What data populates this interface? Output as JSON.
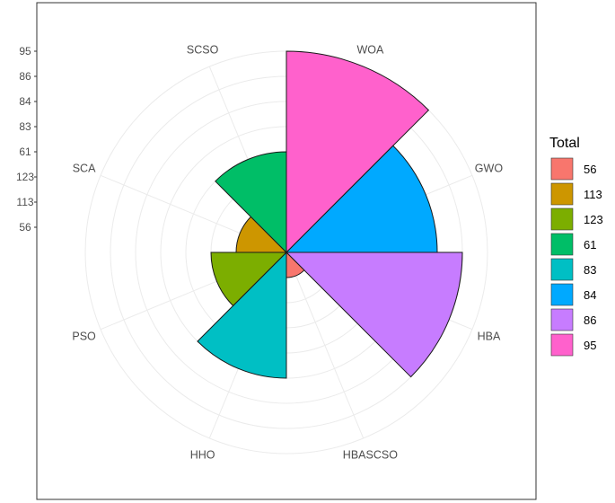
{
  "chart_data": {
    "type": "polar-bar",
    "title": "",
    "categories": [
      "WOA",
      "GWO",
      "HBA",
      "HBASCSO",
      "HHO",
      "PSO",
      "SCA",
      "SCSO"
    ],
    "bars": [
      {
        "category": "WOA",
        "total": "95",
        "radius": 8,
        "color": "#FF61CC"
      },
      {
        "category": "GWO",
        "total": "84",
        "radius": 6,
        "color": "#00A9FF"
      },
      {
        "category": "HBA",
        "total": "86",
        "radius": 7,
        "color": "#C77CFF"
      },
      {
        "category": "HBASCSO",
        "total": "56",
        "radius": 1,
        "color": "#F8766D"
      },
      {
        "category": "HHO",
        "total": "83",
        "radius": 5,
        "color": "#00BFC4"
      },
      {
        "category": "PSO",
        "total": "123",
        "radius": 3,
        "color": "#7CAE00"
      },
      {
        "category": "SCA",
        "total": "113",
        "radius": 2,
        "color": "#CD9600"
      },
      {
        "category": "SCSO",
        "total": "61",
        "radius": 4,
        "color": "#00BE67"
      }
    ],
    "radial_tick_labels": [
      "56",
      "113",
      "123",
      "61",
      "83",
      "84",
      "86",
      "95"
    ],
    "legend": {
      "title": "Total",
      "position": "right",
      "entries": [
        {
          "label": "56",
          "color": "#F8766D"
        },
        {
          "label": "113",
          "color": "#CD9600"
        },
        {
          "label": "123",
          "color": "#7CAE00"
        },
        {
          "label": "61",
          "color": "#00BE67"
        },
        {
          "label": "83",
          "color": "#00BFC4"
        },
        {
          "label": "84",
          "color": "#00A9FF"
        },
        {
          "label": "86",
          "color": "#C77CFF"
        },
        {
          "label": "95",
          "color": "#FF61CC"
        }
      ]
    },
    "grid": true
  }
}
